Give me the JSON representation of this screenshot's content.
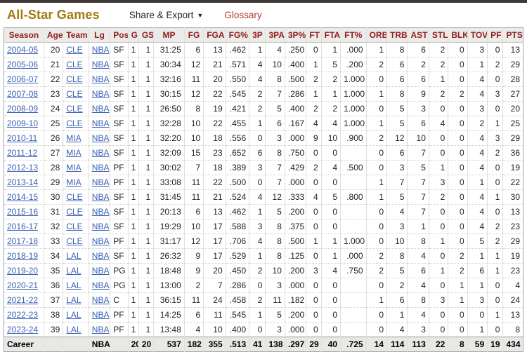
{
  "page": {
    "title": "All-Star Games",
    "share_export_label": "Share & Export",
    "glossary_label": "Glossary"
  },
  "colors": {
    "title_gold": "#a5790a",
    "glossary_red": "#b03a2e",
    "header_text_red": "#92201f",
    "link_blue": "#3a62b5",
    "header_bg": "#ebebe9",
    "career_bg": "#e8e8e6"
  },
  "table": {
    "columns": [
      "Season",
      "Age",
      "Team",
      "Lg",
      "Pos",
      "G",
      "GS",
      "MP",
      "FG",
      "FGA",
      "FG%",
      "3P",
      "3PA",
      "3P%",
      "FT",
      "FTA",
      "FT%",
      "ORB",
      "TRB",
      "AST",
      "STL",
      "BLK",
      "TOV",
      "PF",
      "PTS"
    ],
    "rows": [
      [
        "2004-05",
        "20",
        "CLE",
        "NBA",
        "SF",
        "1",
        "1",
        "31:25",
        "6",
        "13",
        ".462",
        "1",
        "4",
        ".250",
        "0",
        "1",
        ".000",
        "1",
        "8",
        "6",
        "2",
        "0",
        "3",
        "0",
        "13"
      ],
      [
        "2005-06",
        "21",
        "CLE",
        "NBA",
        "SF",
        "1",
        "1",
        "30:34",
        "12",
        "21",
        ".571",
        "4",
        "10",
        ".400",
        "1",
        "5",
        ".200",
        "2",
        "6",
        "2",
        "2",
        "0",
        "1",
        "2",
        "29"
      ],
      [
        "2006-07",
        "22",
        "CLE",
        "NBA",
        "SF",
        "1",
        "1",
        "32:16",
        "11",
        "20",
        ".550",
        "4",
        "8",
        ".500",
        "2",
        "2",
        "1.000",
        "0",
        "6",
        "6",
        "1",
        "0",
        "4",
        "0",
        "28"
      ],
      [
        "2007-08",
        "23",
        "CLE",
        "NBA",
        "SF",
        "1",
        "1",
        "30:15",
        "12",
        "22",
        ".545",
        "2",
        "7",
        ".286",
        "1",
        "1",
        "1.000",
        "1",
        "8",
        "9",
        "2",
        "2",
        "4",
        "3",
        "27"
      ],
      [
        "2008-09",
        "24",
        "CLE",
        "NBA",
        "SF",
        "1",
        "1",
        "26:50",
        "8",
        "19",
        ".421",
        "2",
        "5",
        ".400",
        "2",
        "2",
        "1.000",
        "0",
        "5",
        "3",
        "0",
        "0",
        "3",
        "0",
        "20"
      ],
      [
        "2009-10",
        "25",
        "CLE",
        "NBA",
        "SF",
        "1",
        "1",
        "32:28",
        "10",
        "22",
        ".455",
        "1",
        "6",
        ".167",
        "4",
        "4",
        "1.000",
        "1",
        "5",
        "6",
        "4",
        "0",
        "2",
        "1",
        "25"
      ],
      [
        "2010-11",
        "26",
        "MIA",
        "NBA",
        "SF",
        "1",
        "1",
        "32:20",
        "10",
        "18",
        ".556",
        "0",
        "3",
        ".000",
        "9",
        "10",
        ".900",
        "2",
        "12",
        "10",
        "0",
        "0",
        "4",
        "3",
        "29"
      ],
      [
        "2011-12",
        "27",
        "MIA",
        "NBA",
        "SF",
        "1",
        "1",
        "32:09",
        "15",
        "23",
        ".652",
        "6",
        "8",
        ".750",
        "0",
        "0",
        "",
        "0",
        "6",
        "7",
        "0",
        "0",
        "4",
        "2",
        "36"
      ],
      [
        "2012-13",
        "28",
        "MIA",
        "NBA",
        "PF",
        "1",
        "1",
        "30:02",
        "7",
        "18",
        ".389",
        "3",
        "7",
        ".429",
        "2",
        "4",
        ".500",
        "0",
        "3",
        "5",
        "1",
        "0",
        "4",
        "0",
        "19"
      ],
      [
        "2013-14",
        "29",
        "MIA",
        "NBA",
        "PF",
        "1",
        "1",
        "33:08",
        "11",
        "22",
        ".500",
        "0",
        "7",
        ".000",
        "0",
        "0",
        "",
        "1",
        "7",
        "7",
        "3",
        "0",
        "1",
        "0",
        "22"
      ],
      [
        "2014-15",
        "30",
        "CLE",
        "NBA",
        "SF",
        "1",
        "1",
        "31:45",
        "11",
        "21",
        ".524",
        "4",
        "12",
        ".333",
        "4",
        "5",
        ".800",
        "1",
        "5",
        "7",
        "2",
        "0",
        "4",
        "1",
        "30"
      ],
      [
        "2015-16",
        "31",
        "CLE",
        "NBA",
        "SF",
        "1",
        "1",
        "20:13",
        "6",
        "13",
        ".462",
        "1",
        "5",
        ".200",
        "0",
        "0",
        "",
        "0",
        "4",
        "7",
        "0",
        "0",
        "4",
        "0",
        "13"
      ],
      [
        "2016-17",
        "32",
        "CLE",
        "NBA",
        "SF",
        "1",
        "1",
        "19:29",
        "10",
        "17",
        ".588",
        "3",
        "8",
        ".375",
        "0",
        "0",
        "",
        "0",
        "3",
        "1",
        "0",
        "0",
        "4",
        "2",
        "23"
      ],
      [
        "2017-18",
        "33",
        "CLE",
        "NBA",
        "PF",
        "1",
        "1",
        "31:17",
        "12",
        "17",
        ".706",
        "4",
        "8",
        ".500",
        "1",
        "1",
        "1.000",
        "0",
        "10",
        "8",
        "1",
        "0",
        "5",
        "2",
        "29"
      ],
      [
        "2018-19",
        "34",
        "LAL",
        "NBA",
        "SF",
        "1",
        "1",
        "26:32",
        "9",
        "17",
        ".529",
        "1",
        "8",
        ".125",
        "0",
        "1",
        ".000",
        "2",
        "8",
        "4",
        "0",
        "2",
        "1",
        "1",
        "19"
      ],
      [
        "2019-20",
        "35",
        "LAL",
        "NBA",
        "PG",
        "1",
        "1",
        "18:48",
        "9",
        "20",
        ".450",
        "2",
        "10",
        ".200",
        "3",
        "4",
        ".750",
        "2",
        "5",
        "6",
        "1",
        "2",
        "6",
        "1",
        "23"
      ],
      [
        "2020-21",
        "36",
        "LAL",
        "NBA",
        "PG",
        "1",
        "1",
        "13:00",
        "2",
        "7",
        ".286",
        "0",
        "3",
        ".000",
        "0",
        "0",
        "",
        "0",
        "2",
        "4",
        "0",
        "1",
        "1",
        "0",
        "4"
      ],
      [
        "2021-22",
        "37",
        "LAL",
        "NBA",
        "C",
        "1",
        "1",
        "36:15",
        "11",
        "24",
        ".458",
        "2",
        "11",
        ".182",
        "0",
        "0",
        "",
        "1",
        "6",
        "8",
        "3",
        "1",
        "3",
        "0",
        "24"
      ],
      [
        "2022-23",
        "38",
        "LAL",
        "NBA",
        "PF",
        "1",
        "1",
        "14:25",
        "6",
        "11",
        ".545",
        "1",
        "5",
        ".200",
        "0",
        "0",
        "",
        "0",
        "1",
        "4",
        "0",
        "0",
        "0",
        "1",
        "13"
      ],
      [
        "2023-24",
        "39",
        "LAL",
        "NBA",
        "PF",
        "1",
        "1",
        "13:48",
        "4",
        "10",
        ".400",
        "0",
        "3",
        ".000",
        "0",
        "0",
        "",
        "0",
        "4",
        "3",
        "0",
        "0",
        "1",
        "0",
        "8"
      ]
    ],
    "career": [
      "Career",
      "",
      "",
      "NBA",
      "",
      "20",
      "20",
      "537",
      "182",
      "355",
      ".513",
      "41",
      "138",
      ".297",
      "29",
      "40",
      ".725",
      "14",
      "114",
      "113",
      "22",
      "8",
      "59",
      "19",
      "434"
    ]
  }
}
